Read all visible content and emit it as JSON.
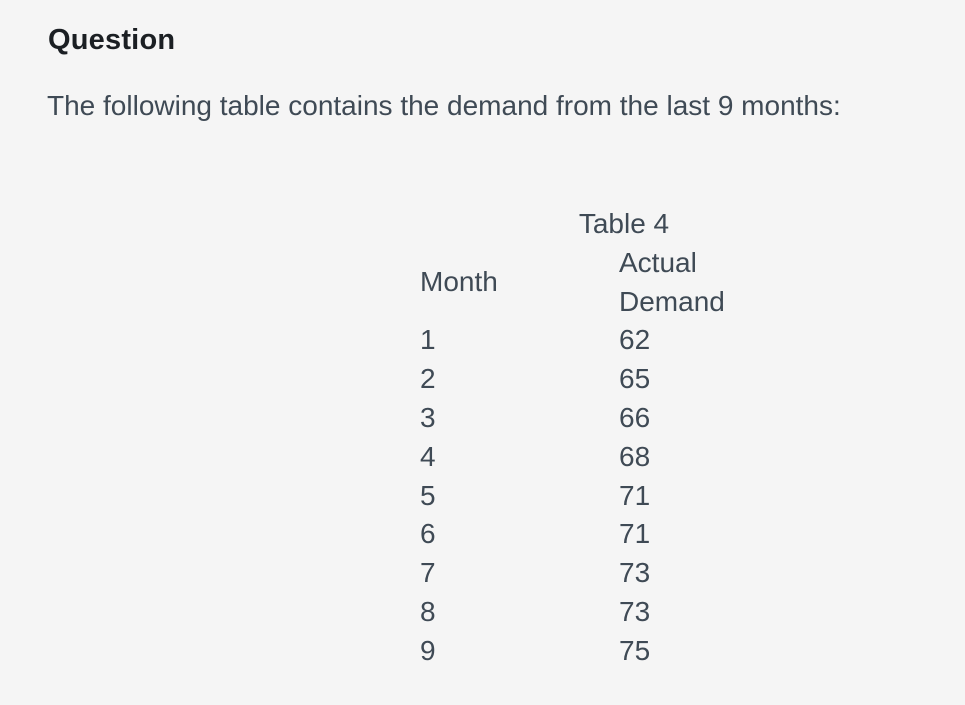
{
  "colors": {
    "page_background": "#f5f5f5",
    "heading_text": "#1b1f23",
    "body_text": "#3f4a55"
  },
  "question": {
    "heading": "Question",
    "prompt": "The following table contains the demand from the last 9 months:"
  },
  "table": {
    "caption": "Table 4",
    "columns": [
      "Month",
      "Actual Demand"
    ],
    "rows": [
      {
        "month": "1",
        "demand": "62"
      },
      {
        "month": "2",
        "demand": "65"
      },
      {
        "month": "3",
        "demand": "66"
      },
      {
        "month": "4",
        "demand": "68"
      },
      {
        "month": "5",
        "demand": "71"
      },
      {
        "month": "6",
        "demand": "71"
      },
      {
        "month": "7",
        "demand": "73"
      },
      {
        "month": "8",
        "demand": "73"
      },
      {
        "month": "9",
        "demand": "75"
      }
    ]
  }
}
